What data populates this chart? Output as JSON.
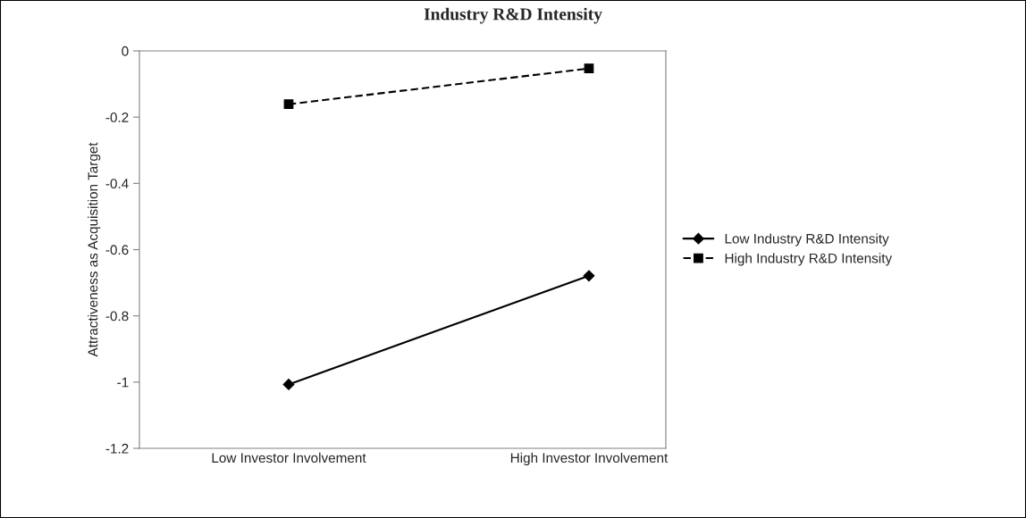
{
  "chart_data": {
    "type": "line",
    "title": "Industry R&D Intensity",
    "ylabel": "Attractiveness as Acquisition Target",
    "categories": [
      "Low Investor Involvement",
      "High Investor Involvement"
    ],
    "series": [
      {
        "name": "Low Industry R&D Intensity",
        "color": "#000000",
        "values": [
          -1.007,
          -0.679
        ],
        "marker": "diamond",
        "line_style": "solid"
      },
      {
        "name": "High Industry R&D Intensity",
        "color": "#000000",
        "values": [
          -0.161,
          -0.053
        ],
        "marker": "square",
        "line_style": "dashed"
      }
    ],
    "ylim": [
      -1.2,
      0
    ],
    "yticks": [
      {
        "value": -1.2,
        "label": "-1.2"
      },
      {
        "value": -1,
        "label": "-1"
      },
      {
        "value": -0.8,
        "label": "-0.8"
      },
      {
        "value": -0.6,
        "label": "-0.6"
      },
      {
        "value": -0.4,
        "label": "-0.4"
      },
      {
        "value": -0.2,
        "label": "-0.2"
      },
      {
        "value": 0,
        "label": "0"
      }
    ],
    "grid": false,
    "legend": "right"
  }
}
